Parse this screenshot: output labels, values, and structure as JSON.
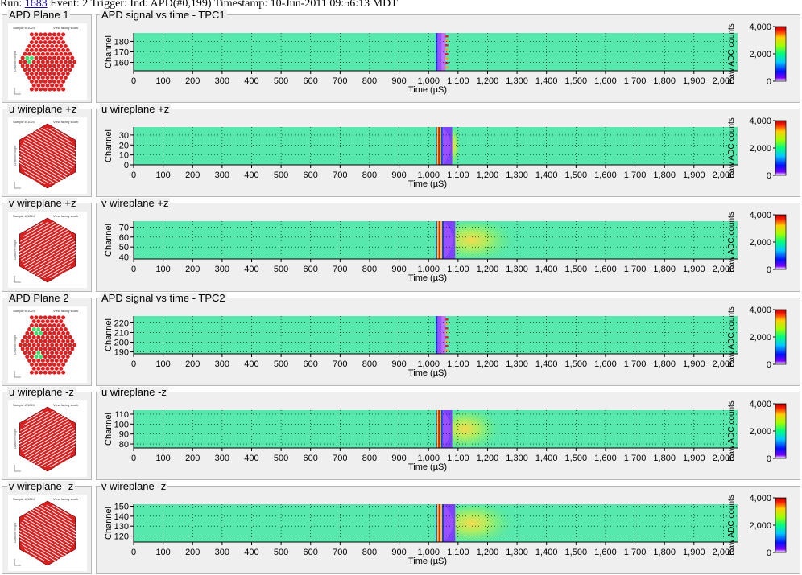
{
  "header": {
    "run_label": "Run:",
    "run_number": "1683",
    "rest": "Event: 2 Trigger: Ind: APD(#0,199) Timestamp: 10-Jun-2011 09:56:13 MDT"
  },
  "colors": {
    "background": "#56E8AC",
    "panel_bg": "#EFEFEF",
    "apd_hit": "#E02020",
    "apd_channel_hit": "#40E070",
    "wire": "#D82020"
  },
  "detector_panels": [
    {
      "title": "APD Plane 1",
      "kind": "apd",
      "sample": "Sample # 1024",
      "view": "View facing south",
      "axis_label": "Chamber height",
      "green_spots": 1
    },
    {
      "title": "u wireplane +z",
      "kind": "wire",
      "sample": "Sample # 1024",
      "view": "View facing south",
      "axis_label": "Chamber height",
      "tilt": 30
    },
    {
      "title": "v wireplane +z",
      "kind": "wire",
      "sample": "Sample # 1024",
      "view": "View facing south",
      "axis_label": "Chamber height",
      "tilt": -30
    },
    {
      "title": "APD Plane 2",
      "kind": "apd",
      "sample": "Sample # 1024",
      "view": "View facing south",
      "axis_label": "Chamber height",
      "green_spots": 2
    },
    {
      "title": "u wireplane -z",
      "kind": "wire",
      "sample": "Sample # 1024",
      "view": "View facing south",
      "axis_label": "Chamber height",
      "tilt": -30
    },
    {
      "title": "v wireplane -z",
      "kind": "wire",
      "sample": "Sample # 1024",
      "view": "View facing south",
      "axis_label": "Chamber height",
      "tilt": 30
    }
  ],
  "chart_data": [
    {
      "type": "heatmap",
      "title": "APD signal vs time - TPC1",
      "xlabel": "Time (µS)",
      "ylabel": "Channel",
      "xlim": [
        0,
        2048
      ],
      "ylim": [
        152,
        188
      ],
      "yticks": [
        160,
        170,
        180
      ],
      "signal_start_us": 1025,
      "signal_end_us": 1080,
      "diffusion_end_us": 1080,
      "colorbar": {
        "label": "Raw ADC counts",
        "ticks": [
          0,
          2000,
          4000
        ],
        "tick_labels": [
          "0",
          "2,000",
          "4,000"
        ]
      },
      "grid": true
    },
    {
      "type": "heatmap",
      "title": "u wireplane +z",
      "xlabel": "Time (µS)",
      "ylabel": "Channel",
      "xlim": [
        0,
        2048
      ],
      "ylim": [
        0,
        38
      ],
      "yticks": [
        0,
        10,
        20,
        30
      ],
      "signal_start_us": 1025,
      "signal_end_us": 1080,
      "diffusion_end_us": 1110,
      "colorbar": {
        "label": "Raw ADC counts",
        "ticks": [
          0,
          2000,
          4000
        ],
        "tick_labels": [
          "0",
          "2,000",
          "4,000"
        ]
      },
      "grid": true
    },
    {
      "type": "heatmap",
      "title": "v wireplane +z",
      "xlabel": "Time (µS)",
      "ylabel": "Channel",
      "xlim": [
        0,
        2048
      ],
      "ylim": [
        38,
        76
      ],
      "yticks": [
        40,
        50,
        60,
        70
      ],
      "signal_start_us": 1025,
      "signal_end_us": 1090,
      "diffusion_end_us": 1300,
      "colorbar": {
        "label": "Raw ADC counts",
        "ticks": [
          0,
          2000,
          4000
        ],
        "tick_labels": [
          "0",
          "2,000",
          "4,000"
        ]
      },
      "grid": true
    },
    {
      "type": "heatmap",
      "title": "APD signal vs time - TPC2",
      "xlabel": "Time (µS)",
      "ylabel": "Channel",
      "xlim": [
        0,
        2048
      ],
      "ylim": [
        188,
        227
      ],
      "yticks": [
        190,
        200,
        210,
        220
      ],
      "signal_start_us": 1025,
      "signal_end_us": 1080,
      "diffusion_end_us": 1080,
      "colorbar": {
        "label": "Raw ADC counts",
        "ticks": [
          0,
          2000,
          4000
        ],
        "tick_labels": [
          "0",
          "2,000",
          "4,000"
        ]
      },
      "grid": true
    },
    {
      "type": "heatmap",
      "title": "u wireplane -z",
      "xlabel": "Time (µS)",
      "ylabel": "Channel",
      "xlim": [
        0,
        2048
      ],
      "ylim": [
        76,
        114
      ],
      "yticks": [
        80,
        90,
        100,
        110
      ],
      "signal_start_us": 1025,
      "signal_end_us": 1080,
      "diffusion_end_us": 1250,
      "colorbar": {
        "label": "Raw ADC counts",
        "ticks": [
          0,
          2000,
          4000
        ],
        "tick_labels": [
          "0",
          "2,000",
          "4,000"
        ]
      },
      "grid": true
    },
    {
      "type": "heatmap",
      "title": "v wireplane -z",
      "xlabel": "Time (µS)",
      "ylabel": "Channel",
      "xlim": [
        0,
        2048
      ],
      "ylim": [
        114,
        152
      ],
      "yticks": [
        120,
        130,
        140,
        150
      ],
      "signal_start_us": 1025,
      "signal_end_us": 1090,
      "diffusion_end_us": 1300,
      "colorbar": {
        "label": "Raw ADC counts",
        "ticks": [
          0,
          2000,
          4000
        ],
        "tick_labels": [
          "0",
          "2,000",
          "4,000"
        ]
      },
      "grid": true
    }
  ],
  "x_ticks": [
    0,
    100,
    200,
    300,
    400,
    500,
    600,
    700,
    800,
    900,
    1000,
    1100,
    1200,
    1300,
    1400,
    1500,
    1600,
    1700,
    1800,
    1900,
    2000
  ],
  "x_tick_labels": [
    "0",
    "100",
    "200",
    "300",
    "400",
    "500",
    "600",
    "700",
    "800",
    "900",
    "1,000",
    "1,100",
    "1,200",
    "1,300",
    "1,400",
    "1,500",
    "1,600",
    "1,700",
    "1,800",
    "1,900",
    "2,000"
  ]
}
